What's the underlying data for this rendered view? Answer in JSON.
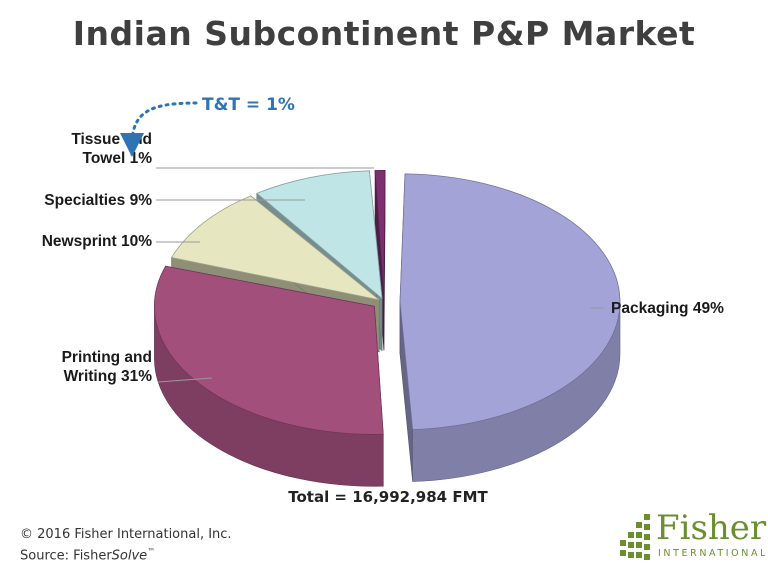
{
  "title": "Indian Subcontinent P&P Market",
  "chart_data": {
    "type": "pie",
    "title": "Indian Subcontinent P&P Market",
    "slices": [
      {
        "label_lines": [
          "Packaging 49%"
        ],
        "value": 49,
        "color": "#a4a3d8"
      },
      {
        "label_lines": [
          "Printing and",
          "Writing 31%"
        ],
        "value": 31,
        "color": "#a24f7c"
      },
      {
        "label_lines": [
          "Newsprint 10%"
        ],
        "value": 10,
        "color": "#e6e7c1"
      },
      {
        "label_lines": [
          "Specialties 9%"
        ],
        "value": 9,
        "color": "#bfe5e6"
      },
      {
        "label_lines": [
          "Tissue and",
          "Towel 1%"
        ],
        "value": 1,
        "color": "#7d2f6f"
      }
    ],
    "callout": "T&T = 1%",
    "total": "Total = 16,992,984 FMT",
    "legend": "none"
  },
  "footer": {
    "copyright": "© 2016 Fisher International, Inc.",
    "source_prefix": "Source: Fisher",
    "source_italic": "Solve",
    "source_tm": "™"
  },
  "logo": {
    "word": "Fisher",
    "sub": "INTERNATIONAL"
  }
}
